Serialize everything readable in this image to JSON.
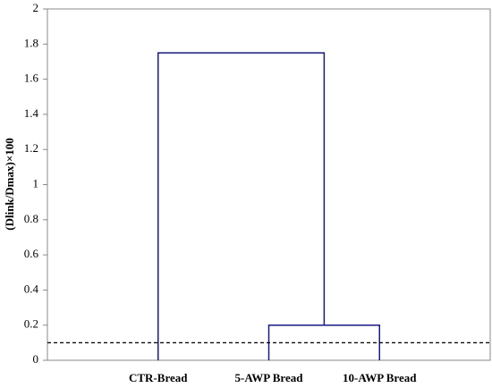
{
  "chart_data": {
    "type": "dendrogram",
    "y_label": "(Dlink/Dmax)×100",
    "categories": [
      "CTR-Bread",
      "5-AWP Bread",
      "10-AWP Bread"
    ],
    "links": [
      {
        "left": 1,
        "right": 2,
        "height": 0.2
      },
      {
        "left": 0,
        "right": 3,
        "height": 1.75
      }
    ],
    "threshold": 0.1,
    "color": "#1a1a80",
    "ylim": [
      0,
      2
    ],
    "yticks": [
      0,
      0.2,
      0.4,
      0.6,
      0.8,
      1,
      1.2,
      1.4,
      1.6,
      1.8,
      2
    ]
  }
}
